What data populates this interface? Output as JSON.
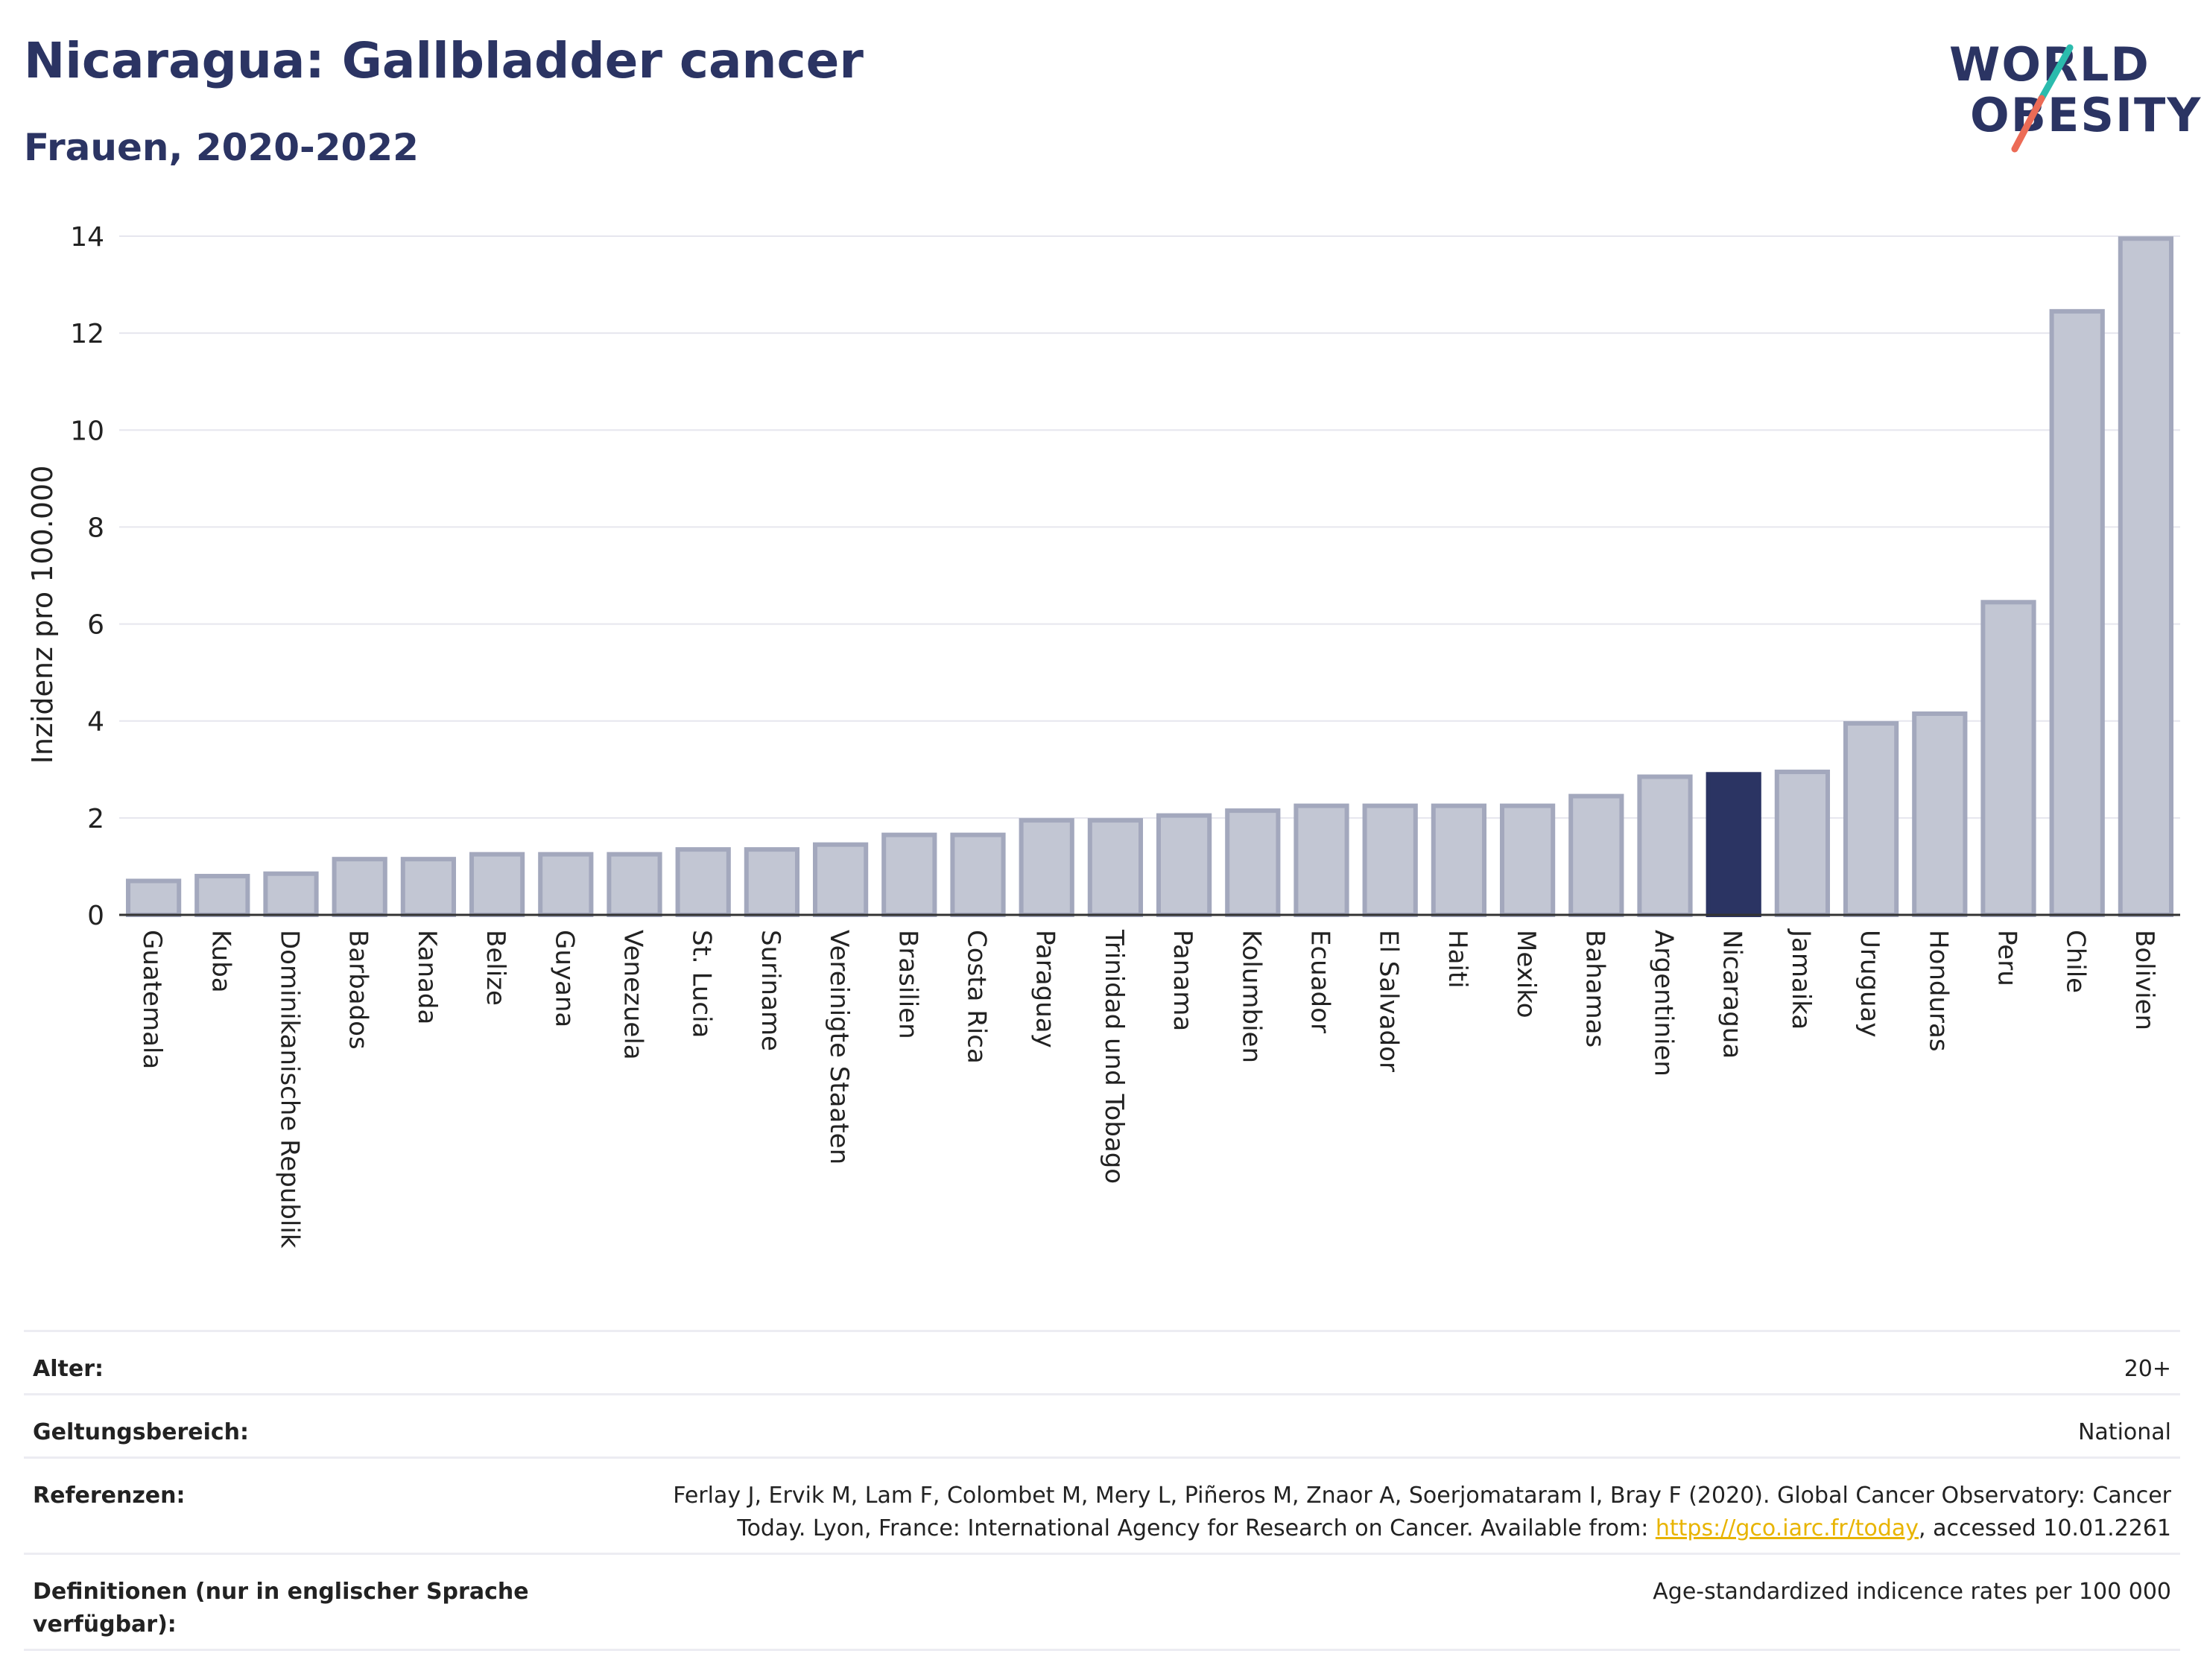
{
  "header": {
    "title": "Nicaragua: Gallbladder cancer",
    "subtitle": "Frauen, 2020-2022"
  },
  "logo": {
    "line1": "WORLD",
    "line2": "OBESITY",
    "colors": {
      "text": "#2b3463",
      "slash_top": "#2bbbad",
      "slash_bottom": "#ec6b56"
    }
  },
  "chart_data": {
    "type": "bar",
    "title": "Nicaragua: Gallbladder cancer",
    "subtitle": "Frauen, 2020-2022",
    "ylabel": "Inzidenz pro 100.000",
    "xlabel": "",
    "ylim": [
      0,
      14
    ],
    "yticks": [
      0,
      2,
      4,
      6,
      8,
      10,
      12,
      14
    ],
    "grid": true,
    "highlight": "Nicaragua",
    "colors": {
      "bar": "#c2c6d3",
      "bar_border": "#a3a8bd",
      "highlight": "#2b3463"
    },
    "categories": [
      "Guatemala",
      "Kuba",
      "Dominikanische Republik",
      "Barbados",
      "Kanada",
      "Belize",
      "Guyana",
      "Venezuela",
      "St. Lucia",
      "Suriname",
      "Vereinigte Staaten",
      "Brasilien",
      "Costa Rica",
      "Paraguay",
      "Trinidad und Tobago",
      "Panama",
      "Kolumbien",
      "Ecuador",
      "El Salvador",
      "Haiti",
      "Mexiko",
      "Bahamas",
      "Argentinien",
      "Nicaragua",
      "Jamaika",
      "Uruguay",
      "Honduras",
      "Peru",
      "Chile",
      "Bolivien"
    ],
    "values": [
      0.7,
      0.8,
      0.85,
      1.15,
      1.15,
      1.25,
      1.25,
      1.25,
      1.35,
      1.35,
      1.45,
      1.65,
      1.65,
      1.95,
      1.95,
      2.05,
      2.15,
      2.25,
      2.25,
      2.25,
      2.25,
      2.45,
      2.85,
      2.9,
      2.95,
      3.95,
      4.15,
      6.45,
      12.45,
      13.95
    ]
  },
  "footer": {
    "rows": [
      {
        "label": "Alter:",
        "value": "20+"
      },
      {
        "label": "Geltungsbereich:",
        "value": "National"
      },
      {
        "label": "Referenzen:",
        "value_line1": "Ferlay J, Ervik M, Lam F, Colombet M, Mery L, Piñeros M, Znaor A, Soerjomataram I, Bray F (2020). Global Cancer Observatory: Cancer",
        "value_line2_prefix": "Today. Lyon, France: International Agency for Research on Cancer. Available from: ",
        "link": "https://gco.iarc.fr/today",
        "value_line2_suffix": ", accessed 10.01.2261"
      },
      {
        "label": "Definitionen (nur in englischer Sprache verfügbar):",
        "value": "Age-standardized indicence rates per 100 000"
      }
    ]
  }
}
